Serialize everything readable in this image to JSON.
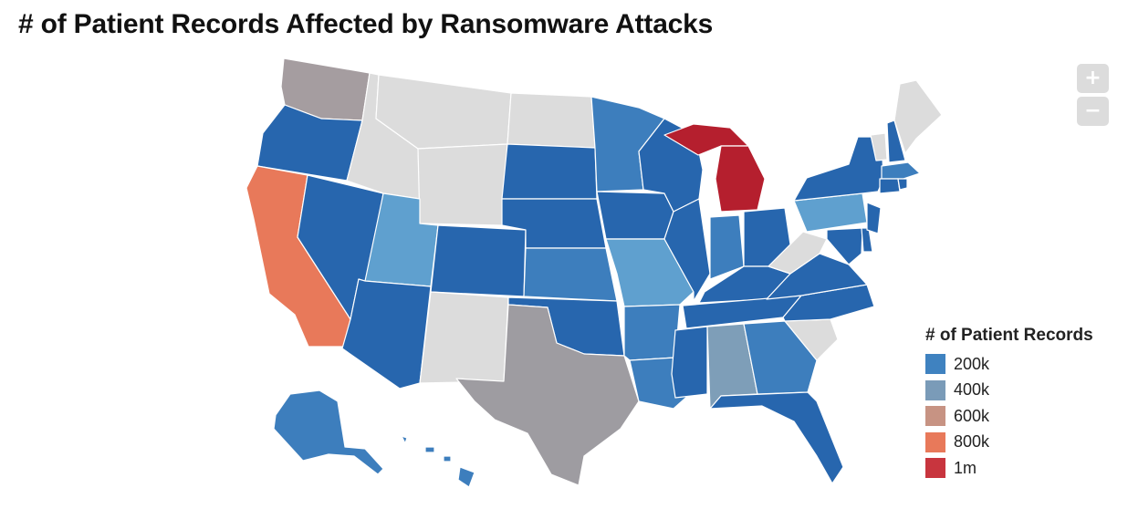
{
  "title": "# of Patient Records Affected by Ransomware Attacks",
  "zoom": {
    "in_label": "+",
    "out_label": "−"
  },
  "legend": {
    "title": "# of Patient Records",
    "items": [
      {
        "label": "200k",
        "color": "#3f82c0"
      },
      {
        "label": "400k",
        "color": "#7a9bb8"
      },
      {
        "label": "600k",
        "color": "#c79383"
      },
      {
        "label": "800k",
        "color": "#e8795a"
      },
      {
        "label": "1m",
        "color": "#c8353e"
      }
    ]
  },
  "map_colors": {
    "no_data": "#dcdcdc",
    "blue_dark": "#2766ae",
    "blue_mid": "#3d7ebd",
    "blue_light": "#5fa0cf",
    "steel": "#7e9eb8",
    "gray": "#9e9ca1",
    "gray_mauve": "#a59da0",
    "orange": "#e8795a",
    "red": "#b51f2e"
  }
}
